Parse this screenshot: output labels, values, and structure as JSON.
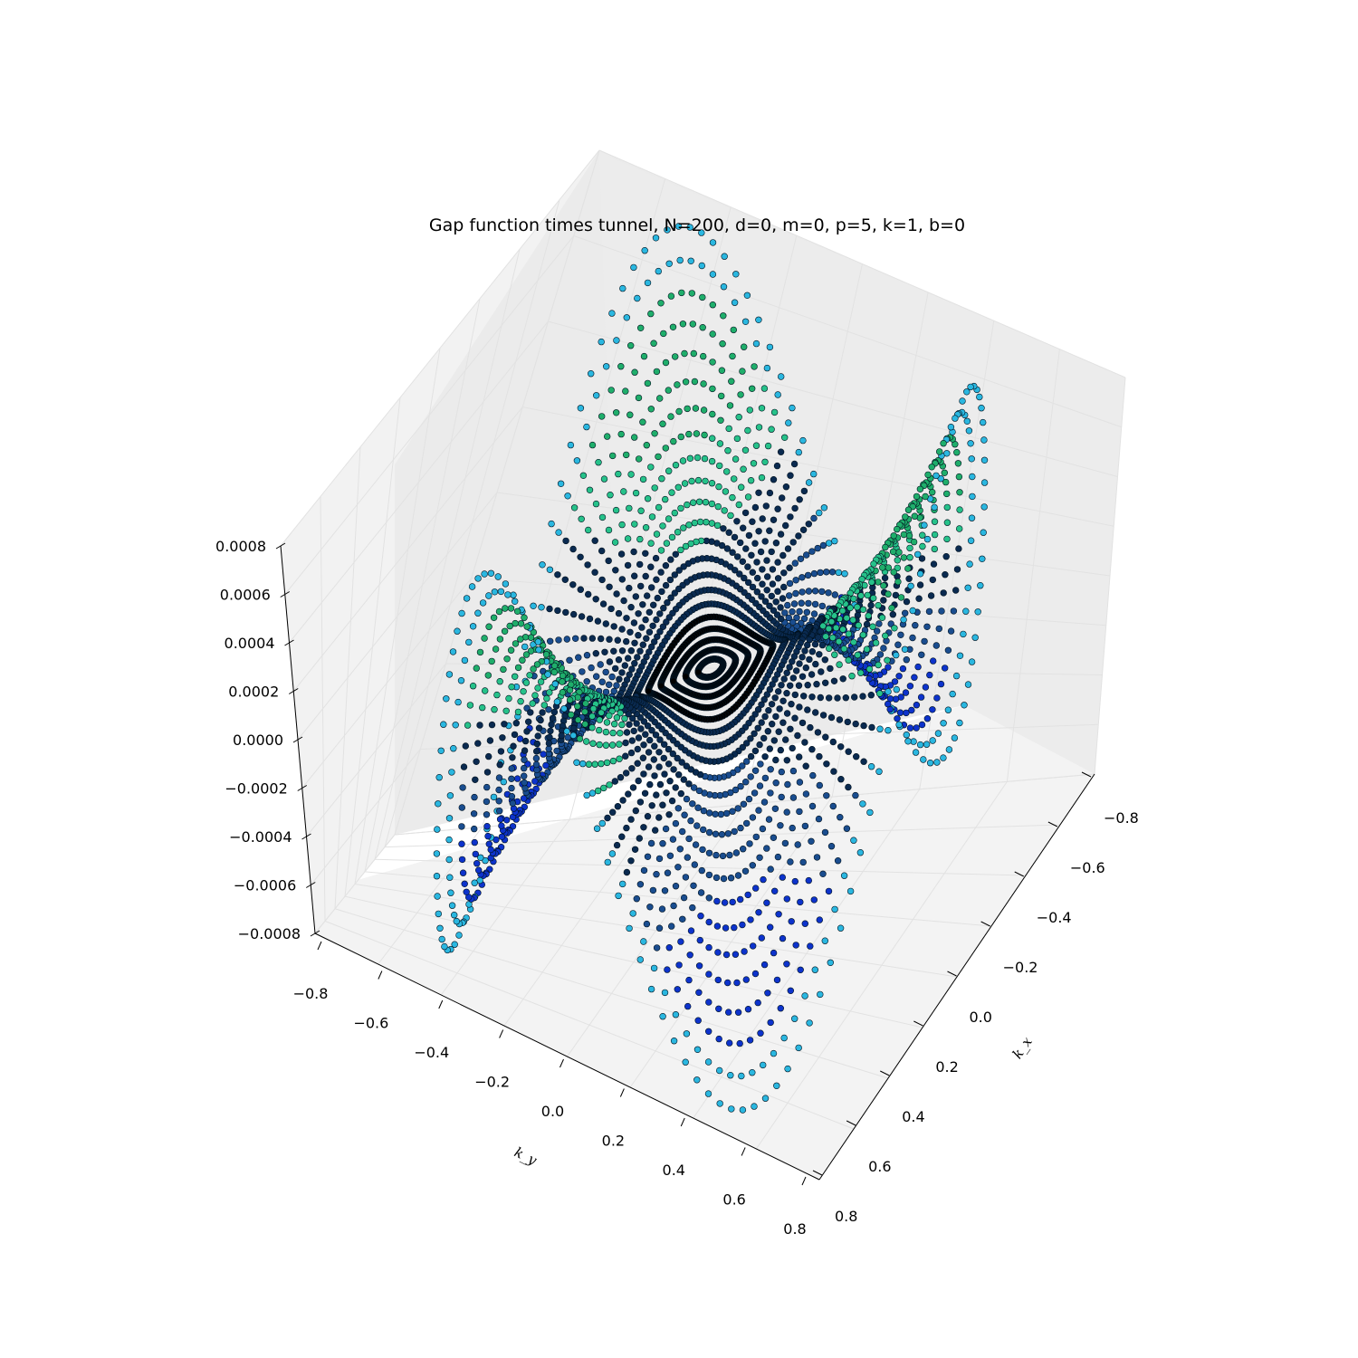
{
  "chart_data": {
    "type": "scatter",
    "projection": "3d",
    "title": "Gap function times tunnel, N=200, d=0, m=0, p=5, k=1, b=0",
    "xlabel": "k_x",
    "ylabel": "k_y",
    "zlabel": "",
    "x_ticks": [
      "−0.8",
      "−0.6",
      "−0.4",
      "−0.2",
      "0.0",
      "0.2",
      "0.4",
      "0.6",
      "0.8"
    ],
    "y_ticks": [
      "−0.8",
      "−0.6",
      "−0.4",
      "−0.2",
      "0.0",
      "0.2",
      "0.4",
      "0.6",
      "0.8"
    ],
    "z_ticks": [
      "−0.0008",
      "−0.0006",
      "−0.0004",
      "−0.0002",
      "0.0000",
      "0.0002",
      "0.0004",
      "0.0006",
      "0.0008"
    ],
    "xlim": [
      -0.8,
      0.8
    ],
    "ylim": [
      -0.8,
      0.8
    ],
    "zlim": [
      -0.0008,
      0.0008
    ],
    "grid": true,
    "surface": {
      "shape": "disk",
      "radius": 0.8,
      "angular_symmetry": 3,
      "z_peak": 0.00085,
      "z_trough": -0.00085
    },
    "colormap": [
      "#000000",
      "#0a2a50",
      "#1a4d8f",
      "#0d33cc",
      "#1fae6b",
      "#26c28a",
      "#2ab7e0"
    ]
  }
}
